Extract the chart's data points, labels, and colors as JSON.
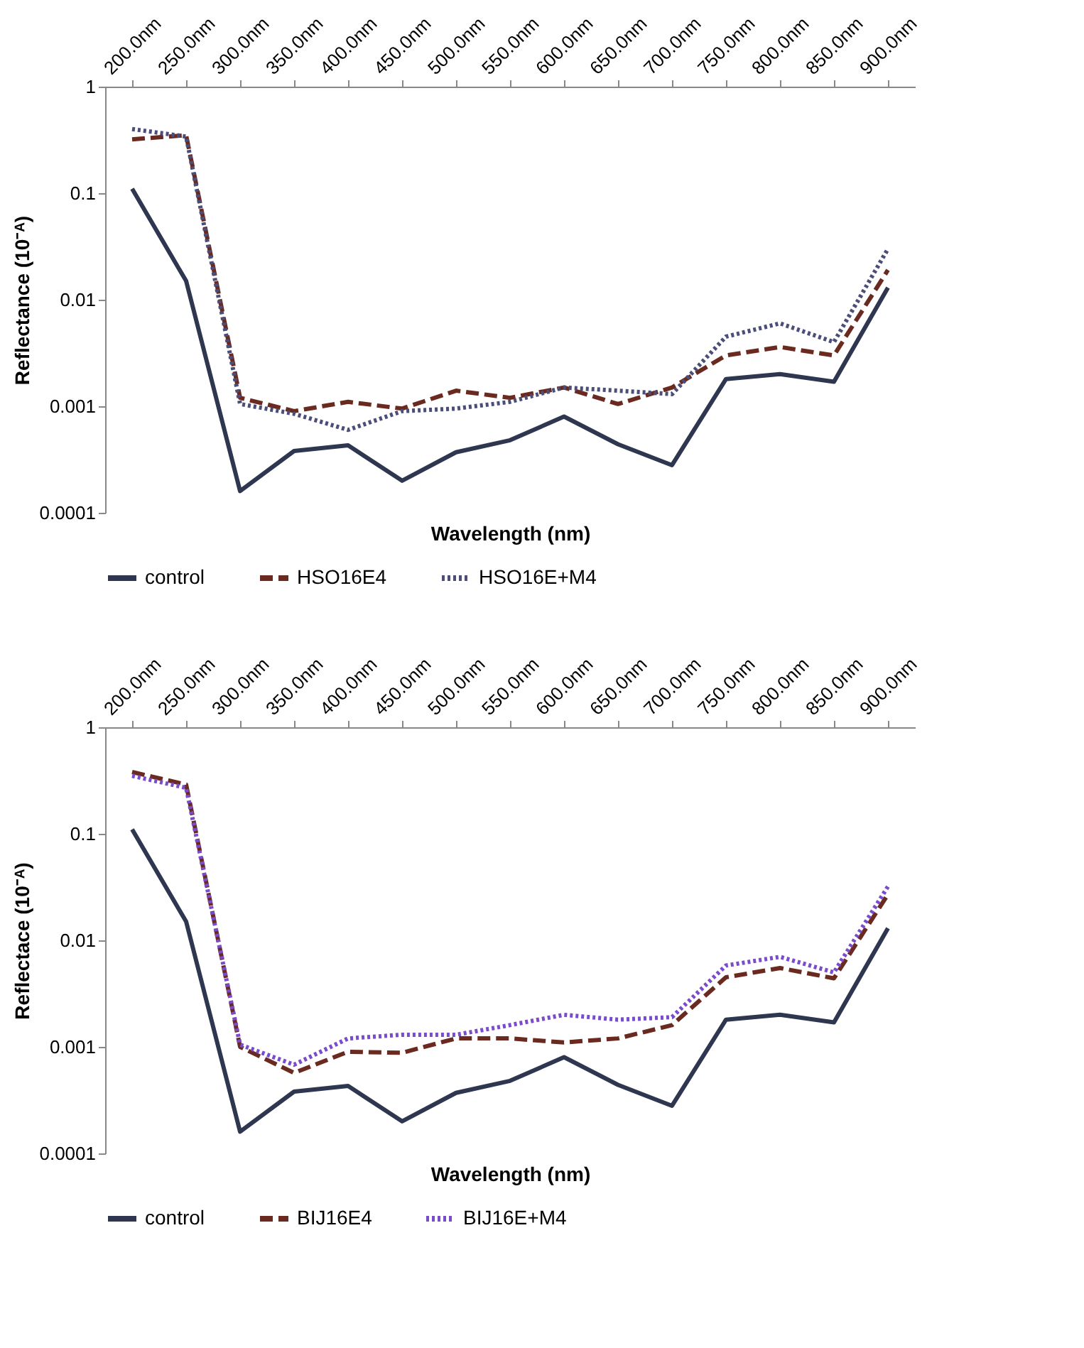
{
  "chart_data": [
    {
      "type": "line",
      "xlabel": "Wavelength (nm)",
      "ylabel": "Reflectance (10⁻ᴬ)",
      "log": "y",
      "ylim": [
        0.0001,
        1
      ],
      "yticks": [
        0.0001,
        0.001,
        0.01,
        0.1,
        1
      ],
      "legend": "bottom",
      "categories": [
        "200.0nm",
        "250.0nm",
        "300.0nm",
        "350.0nm",
        "400.0nm",
        "450.0nm",
        "500.0nm",
        "550.0nm",
        "600.0nm",
        "650.0nm",
        "700.0nm",
        "750.0nm",
        "800.0nm",
        "850.0nm",
        "900.0nm"
      ],
      "series": [
        {
          "name": "control",
          "color": "#2e3650",
          "line_style": "solid",
          "values": [
            0.11,
            0.015,
            0.00016,
            0.00038,
            0.00043,
            0.0002,
            0.00037,
            0.00048,
            0.0008,
            0.00044,
            0.00028,
            0.0018,
            0.002,
            0.0017,
            0.013
          ]
        },
        {
          "name": "HSO16E4",
          "color": "#6b2a20",
          "line_style": "dashed",
          "values": [
            0.32,
            0.35,
            0.0012,
            0.0009,
            0.0011,
            0.00095,
            0.0014,
            0.0012,
            0.0015,
            0.00105,
            0.0015,
            0.003,
            0.0036,
            0.003,
            0.019
          ]
        },
        {
          "name": "HSO16E+M4",
          "color": "#4a4e78",
          "line_style": "dotted",
          "values": [
            0.4,
            0.34,
            0.00105,
            0.00085,
            0.0006,
            0.0009,
            0.00095,
            0.0011,
            0.0015,
            0.0014,
            0.0013,
            0.0045,
            0.006,
            0.004,
            0.03
          ]
        }
      ]
    },
    {
      "type": "line",
      "xlabel": "Wavelength (nm)",
      "ylabel": "Reflectace (10⁻ᴬ)",
      "log": "y",
      "ylim": [
        0.0001,
        1
      ],
      "yticks": [
        0.0001,
        0.001,
        0.01,
        0.1,
        1
      ],
      "legend": "bottom",
      "categories": [
        "200.0nm",
        "250.0nm",
        "300.0nm",
        "350.0nm",
        "400.0nm",
        "450.0nm",
        "500.0nm",
        "550.0nm",
        "600.0nm",
        "650.0nm",
        "700.0nm",
        "750.0nm",
        "800.0nm",
        "850.0nm",
        "900.0nm"
      ],
      "series": [
        {
          "name": "control",
          "color": "#2e3650",
          "line_style": "solid",
          "values": [
            0.11,
            0.015,
            0.00016,
            0.00038,
            0.00043,
            0.0002,
            0.00037,
            0.00048,
            0.0008,
            0.00044,
            0.00028,
            0.0018,
            0.002,
            0.0017,
            0.013
          ]
        },
        {
          "name": "BIJ16E4",
          "color": "#6b2a20",
          "line_style": "dashed",
          "values": [
            0.38,
            0.29,
            0.001,
            0.00057,
            0.0009,
            0.00088,
            0.0012,
            0.0012,
            0.0011,
            0.0012,
            0.0016,
            0.0045,
            0.0055,
            0.0044,
            0.027
          ]
        },
        {
          "name": "BIJ16E+M4",
          "color": "#7a4ccc",
          "line_style": "dotted",
          "values": [
            0.35,
            0.27,
            0.00105,
            0.00068,
            0.0012,
            0.0013,
            0.0013,
            0.0016,
            0.002,
            0.0018,
            0.0019,
            0.0058,
            0.007,
            0.005,
            0.032
          ]
        }
      ]
    }
  ]
}
